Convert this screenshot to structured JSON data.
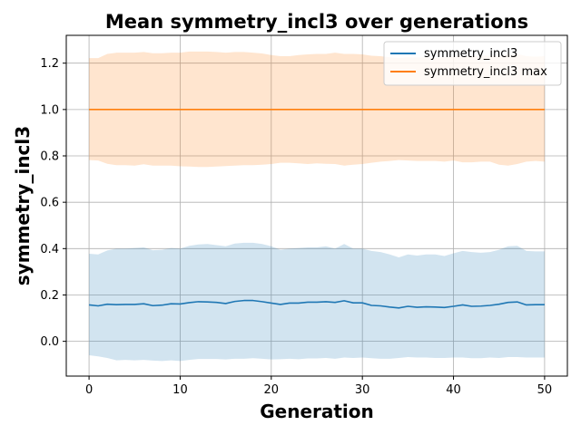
{
  "chart_data": {
    "type": "line",
    "title": "Mean symmetry_incl3 over generations",
    "xlabel": "Generation",
    "ylabel": "symmetry_incl3",
    "xlim": [
      -2.5,
      52.5
    ],
    "ylim": [
      -0.15,
      1.32
    ],
    "xticks": [
      0,
      10,
      20,
      30,
      40,
      50
    ],
    "yticks": [
      0.0,
      0.2,
      0.4,
      0.6,
      0.8,
      1.0,
      1.2
    ],
    "xtick_labels": [
      "0",
      "10",
      "20",
      "30",
      "40",
      "50"
    ],
    "ytick_labels": [
      "0.0",
      "0.2",
      "0.4",
      "0.6",
      "0.8",
      "1.0",
      "1.2"
    ],
    "grid": true,
    "legend_position": "top-right",
    "x": [
      0,
      1,
      2,
      3,
      4,
      5,
      6,
      7,
      8,
      9,
      10,
      11,
      12,
      13,
      14,
      15,
      16,
      17,
      18,
      19,
      20,
      21,
      22,
      23,
      24,
      25,
      26,
      27,
      28,
      29,
      30,
      31,
      32,
      33,
      34,
      35,
      36,
      37,
      38,
      39,
      40,
      41,
      42,
      43,
      44,
      45,
      46,
      47,
      48,
      49,
      50
    ],
    "series": [
      {
        "name": "symmetry_incl3",
        "color": "#1f77b4",
        "values": [
          0.157,
          0.153,
          0.16,
          0.158,
          0.159,
          0.159,
          0.162,
          0.154,
          0.156,
          0.162,
          0.161,
          0.167,
          0.171,
          0.17,
          0.168,
          0.163,
          0.172,
          0.176,
          0.176,
          0.171,
          0.165,
          0.159,
          0.165,
          0.165,
          0.169,
          0.169,
          0.171,
          0.168,
          0.175,
          0.166,
          0.166,
          0.155,
          0.153,
          0.148,
          0.144,
          0.151,
          0.147,
          0.149,
          0.148,
          0.146,
          0.151,
          0.157,
          0.151,
          0.152,
          0.155,
          0.16,
          0.168,
          0.17,
          0.157,
          0.158,
          0.158
        ],
        "band_upper": [
          0.378,
          0.375,
          0.392,
          0.4,
          0.4,
          0.402,
          0.405,
          0.393,
          0.395,
          0.402,
          0.4,
          0.412,
          0.418,
          0.42,
          0.415,
          0.41,
          0.422,
          0.425,
          0.425,
          0.42,
          0.41,
          0.395,
          0.4,
          0.402,
          0.405,
          0.405,
          0.41,
          0.4,
          0.42,
          0.4,
          0.4,
          0.39,
          0.385,
          0.375,
          0.362,
          0.375,
          0.37,
          0.375,
          0.375,
          0.368,
          0.38,
          0.39,
          0.385,
          0.382,
          0.385,
          0.395,
          0.41,
          0.412,
          0.39,
          0.388,
          0.388
        ],
        "band_lower": [
          -0.06,
          -0.065,
          -0.072,
          -0.082,
          -0.08,
          -0.082,
          -0.08,
          -0.083,
          -0.085,
          -0.082,
          -0.085,
          -0.08,
          -0.076,
          -0.076,
          -0.076,
          -0.078,
          -0.075,
          -0.075,
          -0.073,
          -0.075,
          -0.078,
          -0.077,
          -0.075,
          -0.077,
          -0.074,
          -0.074,
          -0.072,
          -0.075,
          -0.07,
          -0.072,
          -0.07,
          -0.073,
          -0.075,
          -0.075,
          -0.072,
          -0.068,
          -0.07,
          -0.07,
          -0.072,
          -0.072,
          -0.07,
          -0.07,
          -0.073,
          -0.073,
          -0.07,
          -0.072,
          -0.068,
          -0.068,
          -0.07,
          -0.07,
          -0.07
        ]
      },
      {
        "name": "symmetry_incl3 max",
        "color": "#ff7f0e",
        "values": [
          1.0,
          1.0,
          1.0,
          1.0,
          1.0,
          1.0,
          1.0,
          1.0,
          1.0,
          1.0,
          1.0,
          1.0,
          1.0,
          1.0,
          1.0,
          1.0,
          1.0,
          1.0,
          1.0,
          1.0,
          1.0,
          1.0,
          1.0,
          1.0,
          1.0,
          1.0,
          1.0,
          1.0,
          1.0,
          1.0,
          1.0,
          1.0,
          1.0,
          1.0,
          1.0,
          1.0,
          1.0,
          1.0,
          1.0,
          1.0,
          1.0,
          1.0,
          1.0,
          1.0,
          1.0,
          1.0,
          1.0,
          1.0,
          1.0,
          1.0,
          1.0
        ],
        "band_upper": [
          1.222,
          1.222,
          1.24,
          1.245,
          1.245,
          1.245,
          1.248,
          1.243,
          1.243,
          1.245,
          1.245,
          1.25,
          1.25,
          1.25,
          1.248,
          1.245,
          1.248,
          1.248,
          1.245,
          1.242,
          1.235,
          1.23,
          1.23,
          1.235,
          1.238,
          1.24,
          1.24,
          1.245,
          1.24,
          1.24,
          1.238,
          1.232,
          1.23,
          1.225,
          1.222,
          1.225,
          1.224,
          1.225,
          1.222,
          1.225,
          1.228,
          1.23,
          1.23,
          1.232,
          1.232,
          1.23,
          1.24,
          1.24,
          1.23,
          1.228,
          1.23
        ],
        "band_lower": [
          0.782,
          0.78,
          0.766,
          0.76,
          0.76,
          0.758,
          0.764,
          0.758,
          0.758,
          0.758,
          0.755,
          0.754,
          0.752,
          0.752,
          0.754,
          0.756,
          0.758,
          0.76,
          0.76,
          0.762,
          0.765,
          0.77,
          0.77,
          0.768,
          0.765,
          0.768,
          0.766,
          0.765,
          0.758,
          0.762,
          0.765,
          0.77,
          0.775,
          0.778,
          0.782,
          0.78,
          0.778,
          0.778,
          0.778,
          0.775,
          0.78,
          0.772,
          0.772,
          0.775,
          0.775,
          0.762,
          0.758,
          0.765,
          0.775,
          0.778,
          0.775
        ]
      }
    ]
  }
}
